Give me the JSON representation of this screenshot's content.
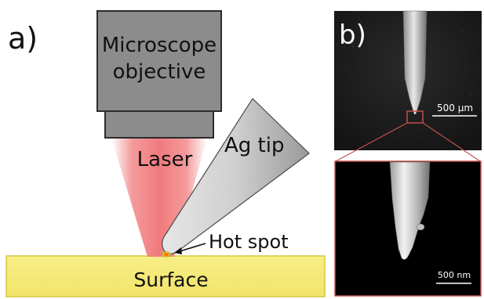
{
  "panel_a": {
    "label": "a)",
    "objective": {
      "line1": "Microscope",
      "line2": "objective"
    },
    "laser_label": "Laser",
    "tip_label": "Ag tip",
    "hotspot_label": "Hot spot",
    "surface_label": "Surface"
  },
  "panel_b": {
    "label": "b)",
    "scale_top": "500 µm",
    "scale_bottom": "500 nm"
  },
  "colors": {
    "objective_fill": "#8c8c8c",
    "objective_stroke": "#2b2b2b",
    "laser": "#f2888a",
    "tip_fill": "#c9c9c9",
    "surface_fill": "#f5ea7a",
    "surface_stroke": "#d6c640",
    "inset_box": "#c0504d",
    "sem_background": "#1a1a1a"
  }
}
